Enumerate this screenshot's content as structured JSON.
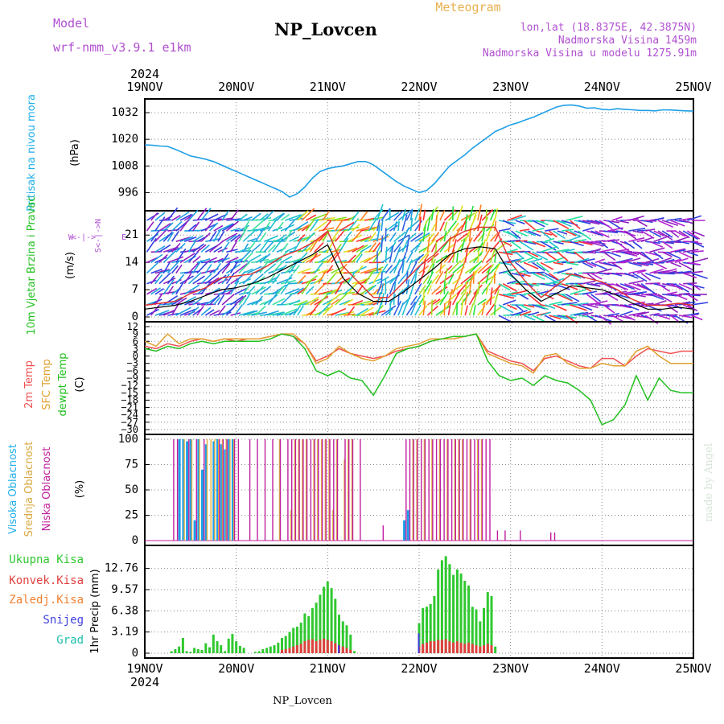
{
  "header": {
    "model_label": "Model",
    "model_name": "wrf-nmm_v3.9.1 e1km",
    "station": "NP_Lovcen",
    "meteogram": "Meteogram",
    "lonlat": "lon,lat (18.8375E, 42.3875N)",
    "altitude": "Nadmorska Visina 1459m",
    "model_altitude": "Nadmorska Visina u modelu 1275.91m",
    "year_top": "2024",
    "year_bottom": "2024",
    "footer_station": "NP_Lovcen",
    "watermark": "made by Angel"
  },
  "time_axis": {
    "labels": [
      "19NOV",
      "20NOV",
      "21NOV",
      "22NOV",
      "23NOV",
      "24NOV",
      "25NOV"
    ],
    "range_hours": [
      0,
      144
    ]
  },
  "colors": {
    "pressure": "#1e9fe6",
    "t2m": "#f05050",
    "sfc": "#e0a030",
    "dewpoint": "#22c020",
    "wind_black": "#000000",
    "wind_red": "#e03030",
    "cloud_high": "#1e9fe6",
    "cloud_mid": "#e0b040",
    "cloud_low": "#c020a0",
    "precip_total": "#30c830",
    "precip_conv": "#e04040",
    "precip_frz": "#f08030",
    "snow": "#4040e0",
    "graupel": "#20c0b0",
    "model_text": "#b050d0",
    "meteogram_text": "#e8b050"
  },
  "chart_data": [
    {
      "type": "line",
      "name": "pressure",
      "ylabel": "Pritisak na nivou mora",
      "unit": "(hPa)",
      "ylim": [
        990,
        1036
      ],
      "yticks": [
        996,
        1008,
        1020,
        1032
      ],
      "grid": true,
      "x": [
        0,
        2,
        4,
        6,
        8,
        10,
        12,
        14,
        16,
        18,
        20,
        22,
        24,
        26,
        28,
        30,
        32,
        34,
        36,
        38,
        40,
        42,
        44,
        46,
        48,
        50,
        52,
        54,
        56,
        58,
        60,
        62,
        64,
        66,
        68,
        70,
        72,
        74,
        76,
        78,
        80,
        82,
        84,
        86,
        88,
        90,
        92,
        94,
        96,
        98,
        100,
        102,
        104,
        106,
        108,
        110,
        112,
        114,
        116,
        118,
        120,
        122,
        124,
        126,
        128,
        130,
        132,
        134,
        136,
        138,
        140,
        142,
        144
      ],
      "series": [
        {
          "key": "pressure",
          "values": [
            1017.5,
            1017.3,
            1017,
            1016.8,
            1015.5,
            1014,
            1012.5,
            1011.8,
            1011,
            1010,
            1008.5,
            1007,
            1005.5,
            1004,
            1002.5,
            1001,
            999.5,
            998,
            996.5,
            994,
            995.5,
            998.5,
            1002.5,
            1005.5,
            1006.8,
            1007.5,
            1008,
            1009,
            1010,
            1010,
            1008.5,
            1006,
            1003.5,
            1001,
            999,
            997.5,
            996,
            997,
            1000,
            1004,
            1008,
            1010.5,
            1013,
            1016,
            1018.5,
            1021,
            1023.5,
            1025,
            1026.5,
            1027.5,
            1028.8,
            1030,
            1031.5,
            1033,
            1034.5,
            1035.3,
            1035.5,
            1035,
            1034,
            1034.2,
            1033.5,
            1033.3,
            1033.8,
            1033.5,
            1033.3,
            1033,
            1033,
            1032.8,
            1033.3,
            1033.2,
            1033,
            1032.8,
            1032.7
          ]
        }
      ]
    },
    {
      "type": "line",
      "name": "wind",
      "ylabel": "10m Vjetar Brzina i Pravac",
      "unit": "(m/s)",
      "compass": {
        "n": "N",
        "s": "S",
        "e": "E",
        "w": "W"
      },
      "ylim": [
        0,
        26
      ],
      "yticks": [
        0,
        7,
        14,
        21
      ],
      "grid": true,
      "x": [
        0,
        4,
        8,
        12,
        16,
        20,
        24,
        28,
        32,
        36,
        40,
        44,
        48,
        52,
        56,
        60,
        64,
        68,
        72,
        76,
        80,
        84,
        88,
        92,
        96,
        100,
        104,
        108,
        112,
        116,
        120,
        124,
        128,
        132,
        136,
        140,
        144
      ],
      "series": [
        {
          "key": "speed_black",
          "values": [
            2,
            2.5,
            3,
            4,
            5.5,
            7,
            7.5,
            8.5,
            10,
            12,
            14,
            16,
            18.5,
            10,
            6,
            4,
            4,
            6.5,
            9.5,
            12.5,
            16,
            17.5,
            18,
            17.5,
            11,
            7,
            4,
            6,
            8,
            7.5,
            7,
            5.5,
            3.5,
            2,
            2,
            2.5,
            2
          ]
        },
        {
          "key": "speed_red",
          "values": [
            3,
            3.5,
            4,
            6,
            7.5,
            10,
            10.5,
            11,
            13,
            15.5,
            17,
            19,
            22,
            13,
            9,
            5,
            5,
            9,
            13,
            16,
            20,
            22,
            23,
            23,
            14,
            9,
            5,
            8,
            11,
            10,
            9,
            7,
            4.5,
            3,
            3,
            3.5,
            3
          ]
        }
      ]
    },
    {
      "type": "line",
      "name": "temperature",
      "ylabel_t2m": "2m Temp",
      "ylabel_sfc": "SFC Temp",
      "ylabel_dew": "dewpt Temp",
      "unit": "(C)",
      "ylim": [
        -30,
        12
      ],
      "yticks": [
        12,
        9,
        6,
        3,
        0,
        -3,
        -6,
        -9,
        -12,
        -15,
        -18,
        -21,
        -24,
        -27,
        -30
      ],
      "tick_labels": [
        "12",
        "9",
        "6",
        "3",
        "0",
        "−3",
        "−6",
        "−9",
        "−12",
        "−15",
        "−18",
        "−21",
        "−24",
        "−27",
        "−30"
      ],
      "grid": true,
      "x": [
        0,
        3,
        6,
        9,
        12,
        15,
        18,
        21,
        24,
        27,
        30,
        33,
        36,
        39,
        42,
        45,
        48,
        51,
        54,
        57,
        60,
        63,
        66,
        69,
        72,
        75,
        78,
        81,
        84,
        87,
        90,
        93,
        96,
        99,
        102,
        105,
        108,
        111,
        114,
        117,
        120,
        123,
        126,
        129,
        132,
        135,
        138,
        141,
        144
      ],
      "series": [
        {
          "key": "t2m",
          "values": [
            4,
            3,
            5,
            4,
            6,
            7,
            6,
            7,
            6,
            7,
            7,
            8,
            9,
            8,
            5,
            -2,
            0,
            3,
            1,
            0,
            -1,
            0,
            2,
            3,
            4,
            6,
            7,
            7,
            8,
            9,
            2,
            0,
            -2,
            -3,
            -6,
            -1,
            0,
            -2,
            -4,
            -5,
            -1,
            -1,
            -4,
            0,
            3,
            2,
            1,
            2,
            2
          ]
        },
        {
          "key": "sfc",
          "values": [
            6,
            4,
            9,
            5,
            7,
            7,
            6,
            7,
            7,
            7,
            7,
            8,
            9,
            9,
            5,
            -3,
            -1,
            4,
            1,
            -1,
            -2,
            0,
            3,
            4,
            5,
            7,
            7,
            7,
            8,
            9,
            1,
            -1,
            -3,
            -4,
            -7,
            0,
            1,
            -3,
            -5,
            -5,
            -3,
            -4,
            -4,
            2,
            4,
            0,
            -3,
            -3,
            -3
          ]
        },
        {
          "key": "dew",
          "values": [
            3,
            2,
            4,
            3,
            5,
            6,
            5,
            6,
            6,
            6,
            6,
            7,
            9,
            8,
            3,
            -6,
            -8,
            -6,
            -9,
            -10,
            -16,
            -8,
            1,
            3,
            4,
            6,
            7,
            8,
            8,
            9,
            -2,
            -8,
            -10,
            -9,
            -12,
            -8,
            -10,
            -11,
            -14,
            -18,
            -28,
            -26,
            -20,
            -8,
            -18,
            -9,
            -14,
            -15,
            -15
          ]
        }
      ]
    },
    {
      "type": "bar",
      "name": "clouds",
      "ylabel_high": "Visoka Oblacnost",
      "ylabel_mid": "Srednja Oblacnost",
      "ylabel_low": "Niska Oblacnost",
      "unit": "(%)",
      "ylim": [
        0,
        100
      ],
      "yticks": [
        0,
        25,
        50,
        75,
        100
      ],
      "grid": true,
      "x": [
        7,
        8,
        9,
        10,
        11,
        12,
        13,
        14,
        15,
        16,
        17,
        18,
        19,
        20,
        21,
        22,
        23,
        24,
        27,
        29,
        31,
        33,
        35,
        37,
        38,
        39,
        40,
        41,
        42,
        43,
        44,
        45,
        46,
        47,
        48,
        49,
        50,
        52,
        53,
        54,
        56,
        62,
        68,
        69,
        70,
        71,
        72,
        73,
        74,
        75,
        76,
        77,
        78,
        79,
        80,
        81,
        82,
        83,
        84,
        85,
        86,
        87,
        88,
        89,
        90,
        92,
        94,
        98,
        106,
        107
      ],
      "series": [
        {
          "key": "high",
          "values": [
            0,
            0,
            100,
            100,
            98,
            100,
            20,
            100,
            70,
            95,
            0,
            98,
            100,
            95,
            90,
            100,
            100,
            0,
            0,
            0,
            0,
            0,
            0,
            0,
            0,
            0,
            0,
            0,
            0,
            0,
            0,
            0,
            0,
            0,
            0,
            0,
            0,
            0,
            0,
            0,
            0,
            0,
            20,
            30,
            0,
            0,
            0,
            0,
            0,
            0,
            0,
            0,
            0,
            0,
            0,
            0,
            0,
            0,
            0,
            0,
            0,
            0,
            0,
            0,
            0,
            0,
            0,
            0,
            0,
            0
          ]
        },
        {
          "key": "mid",
          "values": [
            0,
            0,
            0,
            100,
            0,
            100,
            0,
            100,
            0,
            100,
            100,
            100,
            100,
            100,
            100,
            100,
            100,
            0,
            0,
            0,
            0,
            0,
            100,
            0,
            30,
            100,
            100,
            100,
            100,
            0,
            100,
            100,
            100,
            100,
            100,
            30,
            100,
            80,
            100,
            100,
            0,
            0,
            0,
            0,
            100,
            100,
            0,
            100,
            0,
            100,
            0,
            100,
            0,
            100,
            0,
            100,
            100,
            100,
            0,
            100,
            0,
            100,
            100,
            0,
            0,
            0,
            0,
            0,
            0,
            0
          ]
        },
        {
          "key": "low",
          "values": [
            100,
            100,
            0,
            0,
            100,
            0,
            100,
            0,
            100,
            0,
            0,
            0,
            100,
            100,
            100,
            0,
            100,
            100,
            100,
            100,
            100,
            100,
            100,
            100,
            100,
            100,
            100,
            100,
            100,
            100,
            100,
            100,
            100,
            100,
            100,
            100,
            100,
            100,
            100,
            100,
            100,
            15,
            100,
            100,
            100,
            100,
            100,
            100,
            100,
            100,
            100,
            100,
            100,
            100,
            100,
            100,
            100,
            100,
            100,
            100,
            100,
            100,
            100,
            100,
            100,
            10,
            10,
            10,
            8,
            8
          ]
        }
      ]
    },
    {
      "type": "bar",
      "name": "precipitation",
      "label_total": "Ukupna Kisa",
      "label_conv": "Konvek.Kisa",
      "label_frz": "Zaledj.Kisa",
      "label_snow": "Snijeg",
      "label_grad": "Grad",
      "ylabel": "1hr Precip (mm)",
      "ylim": [
        0,
        15.5
      ],
      "yticks": [
        0,
        3.19,
        6.38,
        9.57,
        12.76
      ],
      "grid": true,
      "x": [
        7,
        8,
        9,
        10,
        11,
        12,
        13,
        14,
        15,
        16,
        17,
        18,
        19,
        20,
        21,
        22,
        23,
        24,
        25,
        26,
        29,
        30,
        31,
        32,
        33,
        34,
        35,
        36,
        37,
        38,
        39,
        40,
        41,
        42,
        43,
        44,
        45,
        46,
        47,
        48,
        49,
        50,
        51,
        52,
        53,
        54,
        55,
        72,
        73,
        74,
        75,
        76,
        77,
        78,
        79,
        80,
        81,
        82,
        83,
        84,
        85,
        86,
        87,
        88,
        89,
        90,
        91,
        92
      ],
      "series": [
        {
          "key": "total",
          "values": [
            0.3,
            0.6,
            1.0,
            2.3,
            0.3,
            0.2,
            0.8,
            0.6,
            0.5,
            1.5,
            0.9,
            2.8,
            1.8,
            1.2,
            0.3,
            2.2,
            2.9,
            1.8,
            1.1,
            0.8,
            0.2,
            0.3,
            0.6,
            0.8,
            1.0,
            1.2,
            1.6,
            2.3,
            2.6,
            3.2,
            3.8,
            4.0,
            4.6,
            6.0,
            5.6,
            6.8,
            7.6,
            8.8,
            10.0,
            10.8,
            9.8,
            8.2,
            5.8,
            4.8,
            4.2,
            2.8,
            0.3,
            4.5,
            6.8,
            7.0,
            7.4,
            8.6,
            12.6,
            14.0,
            14.6,
            13.4,
            11.8,
            12.6,
            12.0,
            10.9,
            10.2,
            7.0,
            6.6,
            4.8,
            6.8,
            9.2,
            8.6,
            1.0
          ]
        },
        {
          "key": "conv",
          "values": [
            0,
            0,
            0,
            0,
            0,
            0,
            0,
            0,
            0,
            0,
            0,
            0,
            0,
            0,
            0,
            0,
            0,
            0,
            0,
            0,
            0,
            0,
            0,
            0,
            0,
            0,
            0,
            0.5,
            0.6,
            0.8,
            1.0,
            1.2,
            1.4,
            1.8,
            2.0,
            2.1,
            1.8,
            2.0,
            2.2,
            2.0,
            1.8,
            1.5,
            1.2,
            1.0,
            0.8,
            0.5,
            0,
            1.0,
            1.4,
            1.6,
            1.8,
            1.8,
            2.0,
            2.0,
            2.1,
            1.8,
            1.6,
            1.8,
            1.6,
            1.4,
            1.6,
            1.4,
            1.2,
            1.0,
            1.2,
            1.4,
            1.2,
            0
          ]
        },
        {
          "key": "snow",
          "values": [
            0,
            0,
            0,
            0,
            0,
            0,
            0,
            0,
            0,
            0,
            0,
            0,
            0,
            0,
            0,
            0,
            0,
            0,
            0,
            0,
            0,
            0,
            0,
            0,
            0,
            0,
            0,
            0,
            0,
            0,
            0,
            0,
            0,
            0,
            0,
            0,
            0,
            0,
            0,
            0,
            0,
            0,
            1.2,
            0,
            0,
            0,
            0,
            3.0,
            0,
            0,
            0,
            0,
            0,
            0,
            0,
            0,
            0,
            0,
            0,
            0,
            0,
            0,
            0,
            0,
            0,
            0,
            0,
            0
          ]
        }
      ]
    }
  ]
}
